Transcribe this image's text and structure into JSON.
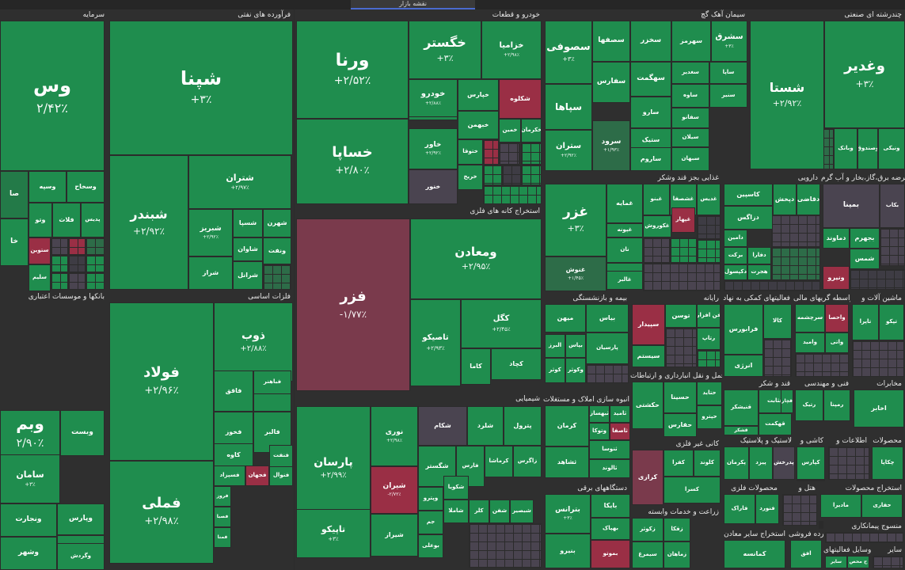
{
  "app": {
    "tab_title": "نقشه بازار"
  },
  "colors": {
    "up": "#1f8d4e",
    "down": "#9a2f45",
    "neutral": "#4a4450"
  },
  "sectors": [
    {
      "title": "سرمایه",
      "tiles": [
        {
          "sym": "وس",
          "pct": "۲/۴۲٪"
        },
        {
          "sym": "وسپه",
          "pct": ""
        },
        {
          "sym": "وسخاح",
          "pct": ""
        },
        {
          "sym": "وتو",
          "pct": ""
        },
        {
          "sym": "فلات",
          "pct": ""
        },
        {
          "sym": "پدیس",
          "pct": ""
        },
        {
          "sym": "ستوین",
          "pct": ""
        },
        {
          "sym": "سلیم",
          "pct": ""
        },
        {
          "sym": "صا",
          "pct": ""
        },
        {
          "sym": "خا",
          "pct": ""
        }
      ]
    },
    {
      "title": "فرآورده های نفتی",
      "tiles": [
        {
          "sym": "شپنا",
          "pct": "+۳٪"
        },
        {
          "sym": "شبندر",
          "pct": "+۲/۹۲٪"
        },
        {
          "sym": "شتران",
          "pct": "+۲/۹۷٪"
        },
        {
          "sym": "شبریز",
          "pct": "+۲/۹۲٪"
        },
        {
          "sym": "شسپا",
          "pct": ""
        },
        {
          "sym": "شهرن",
          "pct": ""
        },
        {
          "sym": "شاوان",
          "pct": ""
        },
        {
          "sym": "شراز",
          "pct": ""
        },
        {
          "sym": "شرانل",
          "pct": ""
        },
        {
          "sym": "ونفت",
          "pct": ""
        }
      ]
    },
    {
      "title": "خودرو و قطعات",
      "tiles": [
        {
          "sym": "ورنا",
          "pct": "+۲/۵۲٪"
        },
        {
          "sym": "خسازپا",
          "pct": ""
        },
        {
          "sym": "خساپا",
          "pct": "+۲/۸۰٪"
        },
        {
          "sym": "خگستر",
          "pct": "+۳٪"
        },
        {
          "sym": "خزامیا",
          "pct": "+۲/۹۸٪"
        },
        {
          "sym": "خودرو",
          "pct": "+۲/۸۸٪"
        },
        {
          "sym": "خپارس",
          "pct": ""
        },
        {
          "sym": "شکلوه",
          "pct": ""
        },
        {
          "sym": "خاور",
          "pct": "+۲/۹۲٪"
        },
        {
          "sym": "خبهمن",
          "pct": ""
        },
        {
          "sym": "خمین",
          "pct": ""
        },
        {
          "sym": "خکرمان",
          "pct": ""
        },
        {
          "sym": "ختوقا",
          "pct": ""
        },
        {
          "sym": "خنور",
          "pct": ""
        },
        {
          "sym": "خریخ",
          "pct": ""
        }
      ]
    },
    {
      "title": "سیمان آهک گچ",
      "tiles": [
        {
          "sym": "سصوفی",
          "pct": "+۳٪"
        },
        {
          "sym": "سصفها",
          "pct": ""
        },
        {
          "sym": "سخزر",
          "pct": ""
        },
        {
          "sym": "سهرمز",
          "pct": ""
        },
        {
          "sym": "سشرق",
          "pct": "+۳٪"
        },
        {
          "sym": "سپاها",
          "pct": ""
        },
        {
          "sym": "سفارس",
          "pct": ""
        },
        {
          "sym": "سهگمت",
          "pct": ""
        },
        {
          "sym": "سغدیر",
          "pct": ""
        },
        {
          "sym": "ساپا",
          "pct": ""
        },
        {
          "sym": "سنیر",
          "pct": ""
        },
        {
          "sym": "ستران",
          "pct": "+۲/۹۲٪"
        },
        {
          "sym": "سرود",
          "pct": "+۱/۹۳٪"
        },
        {
          "sym": "سارو",
          "pct": ""
        },
        {
          "sym": "ساوه",
          "pct": ""
        },
        {
          "sym": "سفانو",
          "pct": ""
        },
        {
          "sym": "سیلان",
          "pct": ""
        },
        {
          "sym": "ستیک",
          "pct": ""
        },
        {
          "sym": "سبهان",
          "pct": ""
        },
        {
          "sym": "ساروم",
          "pct": ""
        }
      ]
    },
    {
      "title": "چندرشته ای صنعتی",
      "tiles": [
        {
          "sym": "وغدیر",
          "pct": "+۳٪"
        },
        {
          "sym": "شستا",
          "pct": "+۲/۹۲٪"
        },
        {
          "sym": "ونیکی",
          "pct": ""
        },
        {
          "sym": "وبانک",
          "pct": ""
        },
        {
          "sym": "وصندوق",
          "pct": ""
        }
      ]
    },
    {
      "title": "استخراج کانه های فلزی",
      "tiles": [
        {
          "sym": "فزر",
          "pct": "-۱/۷۷٪"
        },
        {
          "sym": "ومعادن",
          "pct": "+۲/۹۵٪"
        },
        {
          "sym": "کگل",
          "pct": "+۲/۴۵٪"
        },
        {
          "sym": "تاصیکو",
          "pct": "+۲/۹۳٪"
        },
        {
          "sym": "کچاد",
          "pct": ""
        },
        {
          "sym": "کاما",
          "pct": ""
        }
      ]
    },
    {
      "title": "غذایی بجز قند وشکر",
      "tiles": [
        {
          "sym": "غزر",
          "pct": "+۳٪"
        },
        {
          "sym": "غمایه",
          "pct": ""
        },
        {
          "sym": "غبنو",
          "pct": ""
        },
        {
          "sym": "غشصفا",
          "pct": ""
        },
        {
          "sym": "غکوروش",
          "pct": ""
        },
        {
          "sym": "غپهار",
          "pct": ""
        },
        {
          "sym": "غنوش",
          "pct": "+۱/۴۵٪"
        },
        {
          "sym": "غگل",
          "pct": ""
        },
        {
          "sym": "غدیس",
          "pct": ""
        },
        {
          "sym": "غپونه",
          "pct": ""
        },
        {
          "sym": "نان",
          "pct": ""
        },
        {
          "sym": "غالبر",
          "pct": ""
        }
      ]
    },
    {
      "title": "دارویی",
      "tiles": [
        {
          "sym": "کاسپین",
          "pct": ""
        },
        {
          "sym": "دپخش",
          "pct": ""
        },
        {
          "sym": "دقاضی",
          "pct": ""
        },
        {
          "sym": "دزاگس",
          "pct": ""
        },
        {
          "sym": "دامین",
          "pct": ""
        },
        {
          "sym": "برکت",
          "pct": ""
        },
        {
          "sym": "دفارا",
          "pct": ""
        },
        {
          "sym": "دکپسول",
          "pct": ""
        },
        {
          "sym": "هجرت",
          "pct": ""
        }
      ]
    },
    {
      "title": "عرضه برق،گاز،بخار و آب گرم",
      "tiles": [
        {
          "sym": "بمپنا",
          "pct": ""
        },
        {
          "sym": "دماوند",
          "pct": ""
        },
        {
          "sym": "بجهرم",
          "pct": ""
        },
        {
          "sym": "بکاب",
          "pct": ""
        },
        {
          "sym": "شمس",
          "pct": ""
        },
        {
          "sym": "ونیرو",
          "pct": ""
        }
      ]
    },
    {
      "title": "بانکها و موسسات اعتباری",
      "tiles": [
        {
          "sym": "وبم",
          "pct": "۲/۹۰٪"
        },
        {
          "sym": "سامان",
          "pct": "+۳٪"
        },
        {
          "sym": "وبست",
          "pct": ""
        },
        {
          "sym": "ونجارت",
          "pct": ""
        },
        {
          "sym": "وپارس",
          "pct": ""
        },
        {
          "sym": "وشهر",
          "pct": ""
        },
        {
          "sym": "وسال",
          "pct": ""
        },
        {
          "sym": "وگردش",
          "pct": ""
        }
      ]
    },
    {
      "title": "فلزات اساسی",
      "tiles": [
        {
          "sym": "ذوب",
          "pct": "+۲/۸۸٪"
        },
        {
          "sym": "فولاد",
          "pct": "+۲/۹۶٪"
        },
        {
          "sym": "فملی",
          "pct": "+۲/۹۸٪"
        },
        {
          "sym": "فخوز",
          "pct": ""
        },
        {
          "sym": "فاقق",
          "pct": ""
        },
        {
          "sym": "فالبر",
          "pct": ""
        },
        {
          "sym": "فایا",
          "pct": ""
        },
        {
          "sym": "کاوه",
          "pct": ""
        },
        {
          "sym": "فسپزاد",
          "pct": ""
        },
        {
          "sym": "فجهان",
          "pct": ""
        },
        {
          "sym": "فنوال",
          "pct": ""
        },
        {
          "sym": "فروز",
          "pct": ""
        },
        {
          "sym": "فصبا",
          "pct": ""
        },
        {
          "sym": "فنفت",
          "pct": ""
        },
        {
          "sym": "فباهنر",
          "pct": ""
        },
        {
          "sym": "فمنا",
          "pct": ""
        }
      ]
    },
    {
      "title": "شیمیایی",
      "tiles": [
        {
          "sym": "پارسان",
          "pct": "+۲/۹۹٪"
        },
        {
          "sym": "نوری",
          "pct": "+۲/۹۸٪"
        },
        {
          "sym": "تاپیکو",
          "pct": "+۳٪"
        },
        {
          "sym": "شیران",
          "pct": "-۲/۷۲٪"
        },
        {
          "sym": "شیراز",
          "pct": ""
        },
        {
          "sym": "شکام",
          "pct": ""
        },
        {
          "sym": "شلرد",
          "pct": ""
        },
        {
          "sym": "پترول",
          "pct": ""
        },
        {
          "sym": "شگستر",
          "pct": ""
        },
        {
          "sym": "فارس",
          "pct": ""
        },
        {
          "sym": "کرماشا",
          "pct": ""
        },
        {
          "sym": "زاگرس",
          "pct": ""
        },
        {
          "sym": "وپترو",
          "pct": ""
        },
        {
          "sym": "شکویا",
          "pct": ""
        },
        {
          "sym": "شاملا",
          "pct": ""
        },
        {
          "sym": "جم",
          "pct": ""
        },
        {
          "sym": "بوعلی",
          "pct": ""
        },
        {
          "sym": "کلر",
          "pct": ""
        },
        {
          "sym": "شفن",
          "pct": ""
        },
        {
          "sym": "شبصیر",
          "pct": ""
        }
      ]
    },
    {
      "title": "بیمه و بازنشستگی",
      "tiles": [
        {
          "sym": "بیاس",
          "pct": ""
        },
        {
          "sym": "میهن",
          "pct": ""
        },
        {
          "sym": "البرز",
          "pct": ""
        },
        {
          "sym": "بپاس",
          "pct": ""
        },
        {
          "sym": "پارسیان",
          "pct": ""
        },
        {
          "sym": "کوثر",
          "pct": ""
        },
        {
          "sym": "وکوثر",
          "pct": ""
        }
      ]
    },
    {
      "title": "رایانه",
      "tiles": [
        {
          "sym": "سپیدار",
          "pct": ""
        },
        {
          "sym": "توسن",
          "pct": ""
        },
        {
          "sym": "فن افزار",
          "pct": ""
        },
        {
          "sym": "سیستم",
          "pct": ""
        },
        {
          "sym": "رتاپ",
          "pct": ""
        }
      ]
    },
    {
      "title": "فعالیتهای کمکی به نهاد",
      "tiles": [
        {
          "sym": "فرابورس",
          "pct": ""
        },
        {
          "sym": "کالا",
          "pct": ""
        },
        {
          "sym": "انرژی",
          "pct": ""
        }
      ]
    },
    {
      "title": "واسطه گریهای مالی",
      "tiles": [
        {
          "sym": "سرچشمه",
          "pct": ""
        },
        {
          "sym": "واحصا",
          "pct": ""
        },
        {
          "sym": "واتی",
          "pct": ""
        },
        {
          "sym": "وامید",
          "pct": ""
        }
      ]
    },
    {
      "title": "ماشین آلات و",
      "tiles": [
        {
          "sym": "تاپرا",
          "pct": ""
        },
        {
          "sym": "تپکو",
          "pct": ""
        }
      ]
    },
    {
      "title": "حمل و نقل انبارداری و ارتباطات",
      "tiles": [
        {
          "sym": "حکشتی",
          "pct": ""
        },
        {
          "sym": "حسینا",
          "pct": ""
        },
        {
          "sym": "حتاید",
          "pct": ""
        },
        {
          "sym": "حپترو",
          "pct": ""
        },
        {
          "sym": "حفارس",
          "pct": ""
        }
      ]
    },
    {
      "title": "قند و شکر",
      "tiles": [
        {
          "sym": "قثابت",
          "pct": ""
        },
        {
          "sym": "قچار",
          "pct": ""
        },
        {
          "sym": "قنیشکر",
          "pct": ""
        },
        {
          "sym": "قهکمت",
          "pct": ""
        },
        {
          "sym": "قشکر",
          "pct": ""
        }
      ]
    },
    {
      "title": "فنی و مهندسی",
      "tiles": [
        {
          "sym": "رتیک",
          "pct": ""
        },
        {
          "sym": "رمپنا",
          "pct": ""
        }
      ]
    },
    {
      "title": "مخابرات",
      "tiles": [
        {
          "sym": "اخابر",
          "pct": ""
        }
      ]
    },
    {
      "title": "انبوه سازی املاک و مستغلات",
      "tiles": [
        {
          "sym": "کرمان",
          "pct": ""
        },
        {
          "sym": "ثبهساز",
          "pct": ""
        },
        {
          "sym": "ثامید",
          "pct": ""
        },
        {
          "sym": "وتوکا",
          "pct": ""
        },
        {
          "sym": "ثاصفا",
          "pct": ""
        },
        {
          "sym": "ثشاهد",
          "pct": ""
        },
        {
          "sym": "ثنوسا",
          "pct": ""
        },
        {
          "sym": "ثالوند",
          "pct": ""
        }
      ]
    },
    {
      "title": "کانی غیر فلزی",
      "tiles": [
        {
          "sym": "کرازی",
          "pct": ""
        },
        {
          "sym": "کفرا",
          "pct": ""
        },
        {
          "sym": "کلوند",
          "pct": ""
        },
        {
          "sym": "کسرا",
          "pct": ""
        }
      ]
    },
    {
      "title": "لاستیک و پلاستیک",
      "tiles": [
        {
          "sym": "پکرمان",
          "pct": ""
        },
        {
          "sym": "پیزد",
          "pct": ""
        },
        {
          "sym": "پدرخش",
          "pct": ""
        }
      ]
    },
    {
      "title": "کاشی و",
      "tiles": [
        {
          "sym": "کپارس",
          "pct": ""
        }
      ]
    },
    {
      "title": "اطلاعات و",
      "tiles": []
    },
    {
      "title": "محصولات",
      "tiles": [
        {
          "sym": "چکاپا",
          "pct": ""
        }
      ]
    },
    {
      "title": "دستگاههای برقی",
      "tiles": [
        {
          "sym": "بترانس",
          "pct": "+۳٪"
        },
        {
          "sym": "بایکا",
          "pct": ""
        },
        {
          "sym": "بهپاک",
          "pct": ""
        },
        {
          "sym": "بنیرو",
          "pct": ""
        },
        {
          "sym": "بموتو",
          "pct": ""
        }
      ]
    },
    {
      "title": "زراعت و خدمات وابسته",
      "tiles": [
        {
          "sym": "زکوثر",
          "pct": ""
        },
        {
          "sym": "سیمرغ",
          "pct": ""
        },
        {
          "sym": "زفکا",
          "pct": ""
        },
        {
          "sym": "زماهان",
          "pct": ""
        }
      ]
    },
    {
      "title": "محصولات فلزی",
      "tiles": [
        {
          "sym": "فاراک",
          "pct": ""
        },
        {
          "sym": "فنورد",
          "pct": ""
        }
      ]
    },
    {
      "title": "هتل و",
      "tiles": []
    },
    {
      "title": "استخراج محصولات",
      "tiles": [
        {
          "sym": "مادیرا",
          "pct": ""
        },
        {
          "sym": "حفاری",
          "pct": ""
        }
      ]
    },
    {
      "title": "استخراج سایر معادن",
      "tiles": [
        {
          "sym": "کمانسه",
          "pct": ""
        }
      ]
    },
    {
      "title": "خرده فروشی",
      "tiles": [
        {
          "sym": "افق",
          "pct": ""
        }
      ]
    },
    {
      "title": "منسوج پیمانکاری",
      "tiles": []
    },
    {
      "title": "ح و وسایل فعالیتهای",
      "tiles": [
        {
          "sym": "سایر",
          "pct": ""
        },
        {
          "sym": "ح محص",
          "pct": ""
        }
      ]
    },
    {
      "title": "سایر",
      "tiles": []
    }
  ]
}
